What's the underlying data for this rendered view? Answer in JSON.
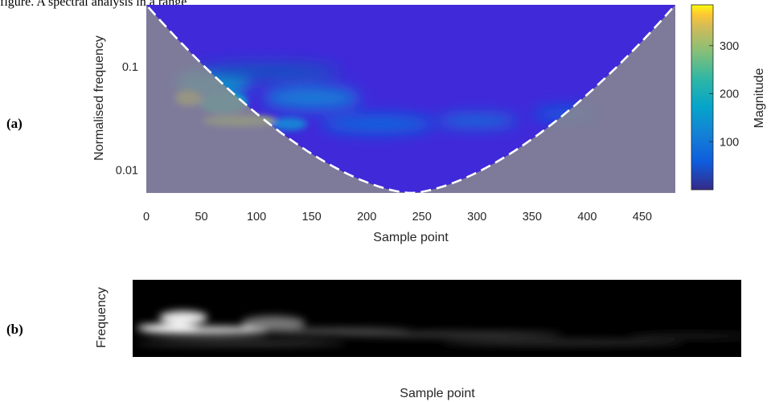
{
  "caption": "figure. A spectral analysis in a range",
  "panels": {
    "a_label": "(a)",
    "b_label": "(b)"
  },
  "chart_data": [
    {
      "type": "heatmap",
      "xlabel": "Sample point",
      "ylabel": "Normalised frequency",
      "colorbar_label": "Magnitude",
      "xticks": [
        "0",
        "50",
        "100",
        "150",
        "200",
        "250",
        "300",
        "350",
        "400",
        "450"
      ],
      "yticks": [
        "0.1",
        "0.01"
      ],
      "colorbar_ticks": [
        "300",
        "200",
        "100"
      ],
      "xlim": [
        0,
        480
      ],
      "ylim": [
        0.006,
        0.4
      ],
      "yscale": "log",
      "colorbar_range": [
        0,
        385
      ],
      "colormap": "parula",
      "cone_of_influence": "dashed white U-shaped boundary; region outside is greyed",
      "peaks": [
        {
          "x": 38,
          "y": 0.05,
          "magnitude": 330
        },
        {
          "x": 85,
          "y": 0.03,
          "magnitude": 310
        },
        {
          "x": 70,
          "y": 0.045,
          "magnitude": 180
        },
        {
          "x": 130,
          "y": 0.028,
          "magnitude": 120
        }
      ]
    },
    {
      "type": "heatmap",
      "xlabel": "Sample point",
      "ylabel": "Frequency",
      "colormap": "grayscale",
      "background": "#000000"
    }
  ],
  "colors": {
    "plot_bg": "#3f29d9",
    "cone_grey": "#8c8c8c",
    "text": "#262626"
  }
}
